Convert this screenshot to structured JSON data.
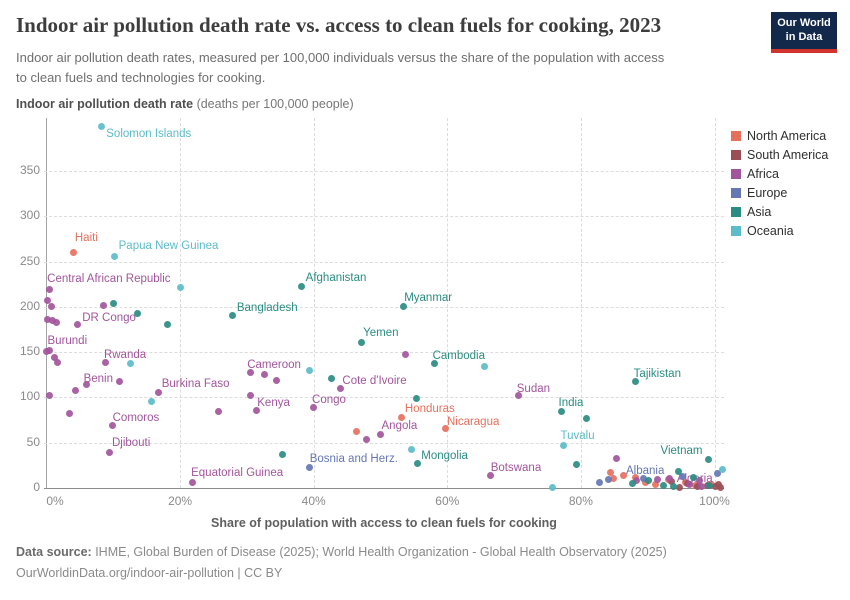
{
  "header": {
    "title": "Indoor air pollution death rate vs. access to clean fuels for cooking, 2023",
    "subtitle": "Indoor air pollution death rates, measured per 100,000 individuals versus the share of the population with access to clean fuels and technologies for cooking.",
    "logo": {
      "line1": "Our World",
      "line2": "in Data",
      "bg": "#12294b",
      "accent": "#d0342c"
    }
  },
  "footer": {
    "source_label": "Data source:",
    "source_text": " IHME, Global Burden of Disease (2025); World Health Organization - Global Health Observatory (2025)",
    "link_line": "OurWorldinData.org/indoor-air-pollution | CC BY"
  },
  "chart_data": {
    "type": "scatter",
    "title": "Indoor air pollution death rate vs. access to clean fuels for cooking, 2023",
    "ylabel_bold": "Indoor air pollution death rate",
    "ylabel_rest": " (deaths per 100,000 people)",
    "xlabel": "Share of population with access to clean fuels for cooking",
    "x_unit": "%",
    "xlim": [
      0,
      102
    ],
    "ylim": [
      0,
      408
    ],
    "grid": true,
    "legend_position": "top-right",
    "y_ticks": [
      0,
      50,
      100,
      150,
      200,
      250,
      300,
      350
    ],
    "x_ticks": [
      0,
      20,
      40,
      60,
      80,
      100
    ],
    "legend": [
      {
        "label": "North America",
        "color": "#e6705c"
      },
      {
        "label": "South America",
        "color": "#9a4e55"
      },
      {
        "label": "Africa",
        "color": "#a2559c"
      },
      {
        "label": "Europe",
        "color": "#6577b3"
      },
      {
        "label": "Asia",
        "color": "#2a8c82"
      },
      {
        "label": "Oceania",
        "color": "#5cbcc9"
      }
    ],
    "series": [
      {
        "name": "North America",
        "color": "#e6705c",
        "points": [
          [
            4.1,
            260,
            "Haiti",
            1,
            -21
          ],
          [
            53.2,
            78,
            "Honduras",
            3,
            -14
          ],
          [
            59.8,
            66,
            "Nicaragua",
            1,
            -12
          ],
          [
            46.4,
            62
          ],
          [
            84.5,
            17
          ],
          [
            84.9,
            10
          ],
          [
            86.4,
            14
          ],
          [
            88.1,
            12
          ],
          [
            89.6,
            6
          ],
          [
            91.1,
            4
          ],
          [
            93.1,
            9
          ],
          [
            95.6,
            6
          ],
          [
            97.1,
            3
          ],
          [
            99.6,
            4
          ]
        ]
      },
      {
        "name": "South America",
        "color": "#9a4e55",
        "points": [
          [
            93.6,
            7
          ],
          [
            94.8,
            1
          ],
          [
            95.9,
            5
          ],
          [
            97.4,
            2
          ],
          [
            98.9,
            3
          ],
          [
            100.2,
            2
          ],
          [
            100.6,
            4
          ],
          [
            100.9,
            1
          ]
        ]
      },
      {
        "name": "Africa",
        "color": "#a2559c",
        "points": [
          [
            0.4,
            219,
            "Central African Republic",
            -2,
            -17
          ],
          [
            4.6,
            180,
            "DR Congo",
            5,
            -13
          ],
          [
            0,
            151,
            "Burundi",
            1,
            -16
          ],
          [
            8.9,
            139,
            "Rwanda",
            -2,
            -13
          ],
          [
            30.5,
            127,
            "Cameroon",
            -3,
            -14
          ],
          [
            6.0,
            114,
            "Benin",
            -3,
            -12
          ],
          [
            16.8,
            105,
            "Burkina Faso",
            3,
            -15
          ],
          [
            44.0,
            110,
            "Cote d'Ivoire",
            2,
            -13
          ],
          [
            70.7,
            102,
            "Sudan",
            -2,
            -13
          ],
          [
            39.9,
            89,
            "Congo",
            -1,
            -13
          ],
          [
            31.4,
            86,
            "Kenya",
            1,
            -13
          ],
          [
            9.9,
            69,
            "Comoros",
            0,
            -14
          ],
          [
            50.0,
            59,
            "Angola",
            1,
            -15
          ],
          [
            9.5,
            39,
            "Djibouti",
            2,
            -16
          ],
          [
            21.8,
            6,
            "Equatorial Guinea",
            -1,
            -16
          ],
          [
            66.5,
            14,
            "Botswana",
            0,
            -13
          ],
          [
            97.8,
            8,
            "Algeria",
            -23,
            -8
          ],
          [
            0.2,
            207
          ],
          [
            0.7,
            200
          ],
          [
            0.1,
            186
          ],
          [
            0.9,
            185
          ],
          [
            1.5,
            183
          ],
          [
            0.4,
            152
          ],
          [
            1.2,
            144
          ],
          [
            1.6,
            139
          ],
          [
            8.6,
            202
          ],
          [
            4.3,
            108
          ],
          [
            10.9,
            118
          ],
          [
            0.5,
            102
          ],
          [
            3.5,
            82
          ],
          [
            25.7,
            84
          ],
          [
            32.7,
            125
          ],
          [
            34.5,
            119
          ],
          [
            30.6,
            102
          ],
          [
            53.8,
            147
          ],
          [
            47.9,
            54
          ],
          [
            85.3,
            33
          ],
          [
            88.3,
            8
          ],
          [
            91.4,
            9
          ],
          [
            93.2,
            10
          ],
          [
            96.2,
            4
          ],
          [
            98.0,
            2
          ]
        ]
      },
      {
        "name": "Europe",
        "color": "#6577b3",
        "points": [
          [
            39.4,
            23,
            "Bosnia and Herz.",
            0,
            -14
          ],
          [
            89.3,
            10,
            "Albania",
            -17,
            -14
          ],
          [
            82.8,
            6
          ],
          [
            84.1,
            9
          ],
          [
            95.2,
            13
          ],
          [
            100.4,
            16
          ]
        ]
      },
      {
        "name": "Asia",
        "color": "#2a8c82",
        "points": [
          [
            38.2,
            223,
            "Afghanistan",
            4,
            -14
          ],
          [
            53.4,
            200,
            "Myanmar",
            1,
            -15
          ],
          [
            27.9,
            191,
            "Bangladesh",
            4,
            -13
          ],
          [
            47.1,
            161,
            "Yemen",
            2,
            -15
          ],
          [
            58.1,
            137,
            "Cambodia",
            -2,
            -14
          ],
          [
            88.2,
            118,
            "Tajikistan",
            -2,
            -13
          ],
          [
            77.1,
            85,
            "India",
            -3,
            -14
          ],
          [
            55.5,
            27,
            "Mongolia",
            4,
            -14
          ],
          [
            99.1,
            32,
            "Vietnam",
            -48,
            -14
          ],
          [
            10.1,
            204
          ],
          [
            13.6,
            193
          ],
          [
            18.1,
            180
          ],
          [
            35.3,
            37
          ],
          [
            42.7,
            121
          ],
          [
            55.4,
            99
          ],
          [
            80.8,
            77
          ],
          [
            79.4,
            26
          ],
          [
            87.7,
            5
          ],
          [
            90.1,
            8
          ],
          [
            92.3,
            3
          ],
          [
            93.8,
            2
          ],
          [
            94.6,
            18
          ],
          [
            96.9,
            12
          ],
          [
            99.3,
            3
          ]
        ]
      },
      {
        "name": "Oceania",
        "color": "#5cbcc9",
        "points": [
          [
            8.2,
            399,
            "Solomon Islands",
            5,
            1
          ],
          [
            10.2,
            256,
            "Papua New Guinea",
            4,
            -16
          ],
          [
            77.4,
            47,
            "Tuvalu",
            -3,
            -15
          ],
          [
            20.0,
            221
          ],
          [
            12.5,
            138
          ],
          [
            15.7,
            95
          ],
          [
            39.3,
            130
          ],
          [
            65.5,
            134
          ],
          [
            54.6,
            43
          ],
          [
            75.8,
            1
          ],
          [
            101.2,
            20
          ]
        ]
      }
    ]
  }
}
